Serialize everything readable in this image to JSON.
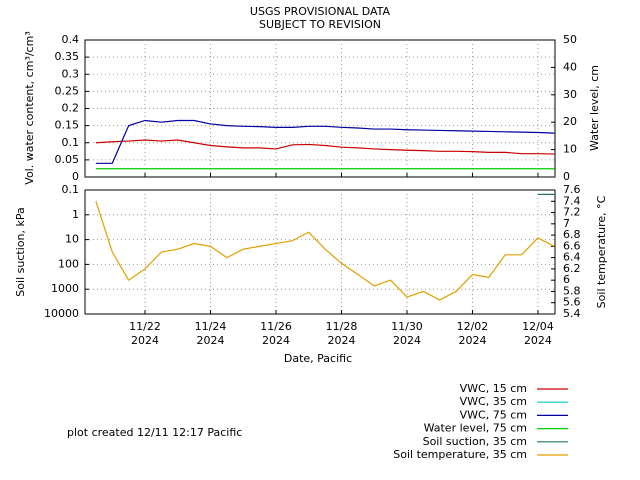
{
  "chart_data": [
    {
      "type": "line",
      "title": "USGS PROVISIONAL DATA",
      "subtitle": "SUBJECT TO REVISION",
      "y_label": "Vol. water content, cm³/cm³",
      "y2_label": "Water level, cm",
      "x": [
        "2024-11-20T12:00",
        "2024-11-21T00:00",
        "2024-11-21T12:00",
        "2024-11-22T00:00",
        "2024-11-22T12:00",
        "2024-11-23T00:00",
        "2024-11-23T12:00",
        "2024-11-24T00:00",
        "2024-11-24T12:00",
        "2024-11-25T00:00",
        "2024-11-25T12:00",
        "2024-11-26T00:00",
        "2024-11-26T12:00",
        "2024-11-27T00:00",
        "2024-11-27T12:00",
        "2024-11-28T00:00",
        "2024-11-28T12:00",
        "2024-11-29T00:00",
        "2024-11-29T12:00",
        "2024-11-30T00:00",
        "2024-11-30T12:00",
        "2024-12-01T00:00",
        "2024-12-01T12:00",
        "2024-12-02T00:00",
        "2024-12-02T12:00",
        "2024-12-03T00:00",
        "2024-12-03T12:00",
        "2024-12-04T00:00",
        "2024-12-04T12:00"
      ],
      "xlim": [
        "2024-11-20T04:00",
        "2024-12-04T12:30"
      ],
      "ylim": [
        0,
        0.4
      ],
      "yticks": [
        0,
        0.05,
        0.1,
        0.15,
        0.2,
        0.25,
        0.3,
        0.35,
        0.4
      ],
      "y2lim": [
        0,
        50
      ],
      "y2ticks": [
        0,
        10,
        20,
        30,
        40,
        50
      ],
      "grid": true,
      "series": [
        {
          "name": "VWC, 15 cm",
          "color": "#cc0000",
          "values": [
            0.1,
            0.103,
            0.105,
            0.108,
            0.105,
            0.108,
            0.1,
            0.092,
            0.088,
            0.085,
            0.085,
            0.082,
            0.094,
            0.095,
            0.092,
            0.087,
            0.085,
            0.082,
            0.08,
            0.078,
            0.077,
            0.075,
            0.075,
            0.074,
            0.072,
            0.072,
            0.068,
            0.068,
            0.067
          ]
        },
        {
          "name": "VWC, 35 cm",
          "color": "#00cccc",
          "values": [
            null,
            null,
            null,
            null,
            null,
            null,
            null,
            null,
            null,
            null,
            null,
            null,
            null,
            null,
            null,
            null,
            null,
            null,
            null,
            null,
            null,
            null,
            null,
            null,
            null,
            null,
            null,
            null,
            null
          ]
        },
        {
          "name": "VWC, 75 cm",
          "color": "#0000a0",
          "values": [
            0.04,
            0.04,
            0.15,
            0.165,
            0.16,
            0.165,
            0.165,
            0.155,
            0.15,
            0.148,
            0.147,
            0.145,
            0.145,
            0.148,
            0.148,
            0.145,
            0.143,
            0.14,
            0.14,
            0.138,
            0.137,
            0.136,
            0.135,
            0.134,
            0.133,
            0.132,
            0.131,
            0.13,
            0.128
          ]
        },
        {
          "name": "Water level, 75 cm",
          "color": "#00cc00",
          "axis": "y2",
          "values": [
            3,
            3,
            3,
            3,
            3,
            3,
            3,
            3,
            3,
            3,
            3,
            3,
            3,
            3,
            3,
            3,
            3,
            3,
            3,
            3,
            3,
            3,
            3,
            3,
            3,
            3,
            3,
            3,
            3
          ]
        }
      ]
    },
    {
      "type": "line",
      "y_label": "Soil suction, kPa",
      "y2_label": "Soil temperature, °C",
      "x_label": "Date, Pacific",
      "annotation": "plot created 12/11 12:17 Pacific",
      "x": [
        "2024-11-20T12:00",
        "2024-11-21T00:00",
        "2024-11-21T12:00",
        "2024-11-22T00:00",
        "2024-11-22T12:00",
        "2024-11-23T00:00",
        "2024-11-23T12:00",
        "2024-11-24T00:00",
        "2024-11-24T12:00",
        "2024-11-25T00:00",
        "2024-11-25T12:00",
        "2024-11-26T00:00",
        "2024-11-26T12:00",
        "2024-11-27T00:00",
        "2024-11-27T12:00",
        "2024-11-28T00:00",
        "2024-11-28T12:00",
        "2024-11-29T00:00",
        "2024-11-29T12:00",
        "2024-11-30T00:00",
        "2024-11-30T12:00",
        "2024-12-01T00:00",
        "2024-12-01T12:00",
        "2024-12-02T00:00",
        "2024-12-02T12:00",
        "2024-12-03T00:00",
        "2024-12-03T12:00",
        "2024-12-04T00:00",
        "2024-12-04T12:00"
      ],
      "xlim": [
        "2024-11-20T04:00",
        "2024-12-04T12:30"
      ],
      "xticks": [
        {
          "value": "2024-11-22T00:00",
          "label": "11/22\n2024"
        },
        {
          "value": "2024-11-24T00:00",
          "label": "11/24\n2024"
        },
        {
          "value": "2024-11-26T00:00",
          "label": "11/26\n2024"
        },
        {
          "value": "2024-11-28T00:00",
          "label": "11/28\n2024"
        },
        {
          "value": "2024-11-30T00:00",
          "label": "11/30\n2024"
        },
        {
          "value": "2024-12-02T00:00",
          "label": "12/02\n2024"
        },
        {
          "value": "2024-12-04T00:00",
          "label": "12/04\n2024"
        }
      ],
      "ylim": [
        0.1,
        10000
      ],
      "yticks": [
        0.1,
        1,
        10,
        100,
        1000,
        10000
      ],
      "log": true,
      "yreverse": true,
      "y2lim": [
        5.4,
        7.6
      ],
      "y2ticks": [
        5.4,
        5.6,
        5.8,
        6,
        6.2,
        6.4,
        6.6,
        6.8,
        7,
        7.2,
        7.4,
        7.6
      ],
      "grid": true,
      "series": [
        {
          "name": "Soil suction, 35 cm",
          "color": "#1f7a5a",
          "values": [
            null,
            null,
            null,
            null,
            null,
            null,
            null,
            null,
            null,
            null,
            null,
            null,
            null,
            null,
            null,
            null,
            null,
            null,
            null,
            null,
            null,
            null,
            null,
            null,
            null,
            null,
            null,
            0.15,
            0.15
          ]
        },
        {
          "name": "Soil temperature, 35 cm",
          "color": "#e0a000",
          "axis": "y2",
          "values": [
            7.4,
            6.5,
            6.0,
            6.2,
            6.5,
            6.55,
            6.65,
            6.6,
            6.4,
            6.55,
            6.6,
            6.65,
            6.7,
            6.85,
            6.55,
            6.3,
            6.1,
            5.9,
            6.0,
            5.7,
            5.8,
            5.65,
            5.8,
            6.1,
            6.05,
            6.45,
            6.45,
            6.75,
            6.6
          ]
        }
      ]
    }
  ]
}
